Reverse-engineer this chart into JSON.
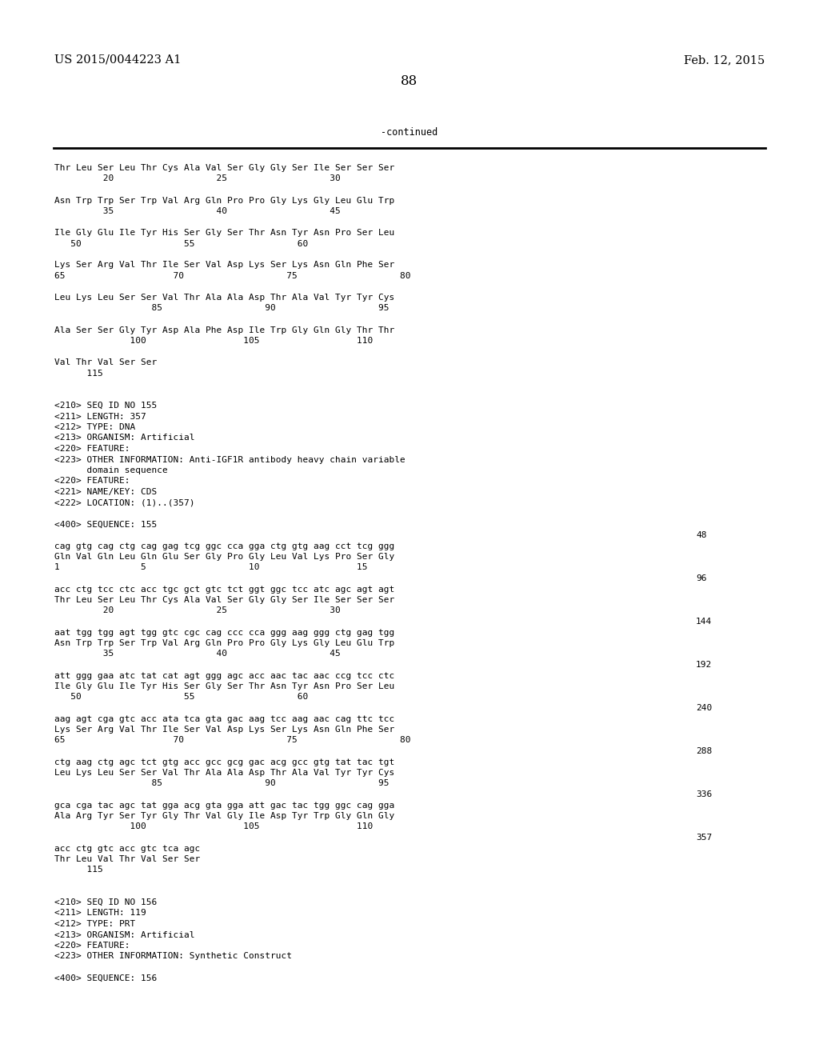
{
  "header_left": "US 2015/0044223 A1",
  "header_right": "Feb. 12, 2015",
  "page_number": "88",
  "continued_label": "-continued",
  "background_color": "#ffffff",
  "text_color": "#000000",
  "content_lines": [
    "Thr Leu Ser Leu Thr Cys Ala Val Ser Gly Gly Ser Ile Ser Ser Ser",
    "         20                   25                   30",
    "",
    "Asn Trp Trp Ser Trp Val Arg Gln Pro Pro Gly Lys Gly Leu Glu Trp",
    "         35                   40                   45",
    "",
    "Ile Gly Glu Ile Tyr His Ser Gly Ser Thr Asn Tyr Asn Pro Ser Leu",
    "   50                   55                   60",
    "",
    "Lys Ser Arg Val Thr Ile Ser Val Asp Lys Ser Lys Asn Gln Phe Ser",
    "65                    70                   75                   80",
    "",
    "Leu Lys Leu Ser Ser Val Thr Ala Ala Asp Thr Ala Val Tyr Tyr Cys",
    "                  85                   90                   95",
    "",
    "Ala Ser Ser Gly Tyr Asp Ala Phe Asp Ile Trp Gly Gln Gly Thr Thr",
    "              100                  105                  110",
    "",
    "Val Thr Val Ser Ser",
    "      115",
    "",
    "",
    "<210> SEQ ID NO 155",
    "<211> LENGTH: 357",
    "<212> TYPE: DNA",
    "<213> ORGANISM: Artificial",
    "<220> FEATURE:",
    "<223> OTHER INFORMATION: Anti-IGF1R antibody heavy chain variable",
    "      domain sequence",
    "<220> FEATURE:",
    "<221> NAME/KEY: CDS",
    "<222> LOCATION: (1)..(357)",
    "",
    "<400> SEQUENCE: 155",
    "",
    "cag gtg cag ctg cag gag tcg ggc cca gga ctg gtg aag cct tcg ggg",
    "Gln Val Gln Leu Gln Glu Ser Gly Pro Gly Leu Val Lys Pro Ser Gly",
    "1               5                   10                  15",
    "",
    "acc ctg tcc ctc acc tgc gct gtc tct ggt ggc tcc atc agc agt agt",
    "Thr Leu Ser Leu Thr Cys Ala Val Ser Gly Gly Ser Ile Ser Ser Ser",
    "         20                   25                   30",
    "",
    "aat tgg tgg agt tgg gtc cgc cag ccc cca ggg aag ggg ctg gag tgg",
    "Asn Trp Trp Ser Trp Val Arg Gln Pro Pro Gly Lys Gly Leu Glu Trp",
    "         35                   40                   45",
    "",
    "att ggg gaa atc tat cat agt ggg agc acc aac tac aac ccg tcc ctc",
    "Ile Gly Glu Ile Tyr His Ser Gly Ser Thr Asn Tyr Asn Pro Ser Leu",
    "   50                   55                   60",
    "",
    "aag agt cga gtc acc ata tca gta gac aag tcc aag aac cag ttc tcc",
    "Lys Ser Arg Val Thr Ile Ser Val Asp Lys Ser Lys Asn Gln Phe Ser",
    "65                    70                   75                   80",
    "",
    "ctg aag ctg agc tct gtg acc gcc gcg gac acg gcc gtg tat tac tgt",
    "Leu Lys Leu Ser Ser Val Thr Ala Ala Asp Thr Ala Val Tyr Tyr Cys",
    "                  85                   90                   95",
    "",
    "gca cga tac agc tat gga acg gta gga att gac tac tgg ggc cag gga",
    "Ala Arg Tyr Ser Tyr Gly Thr Val Gly Ile Asp Tyr Trp Gly Gln Gly",
    "              100                  105                  110",
    "",
    "acc ctg gtc acc gtc tca agc",
    "Thr Leu Val Thr Val Ser Ser",
    "      115",
    "",
    "",
    "<210> SEQ ID NO 156",
    "<211> LENGTH: 119",
    "<212> TYPE: PRT",
    "<213> ORGANISM: Artificial",
    "<220> FEATURE:",
    "<223> OTHER INFORMATION: Synthetic Construct",
    "",
    "<400> SEQUENCE: 156"
  ],
  "right_numbers": {
    "34": "48",
    "38": "96",
    "42": "144",
    "46": "192",
    "50": "240",
    "54": "288",
    "58": "336",
    "62": "357"
  }
}
